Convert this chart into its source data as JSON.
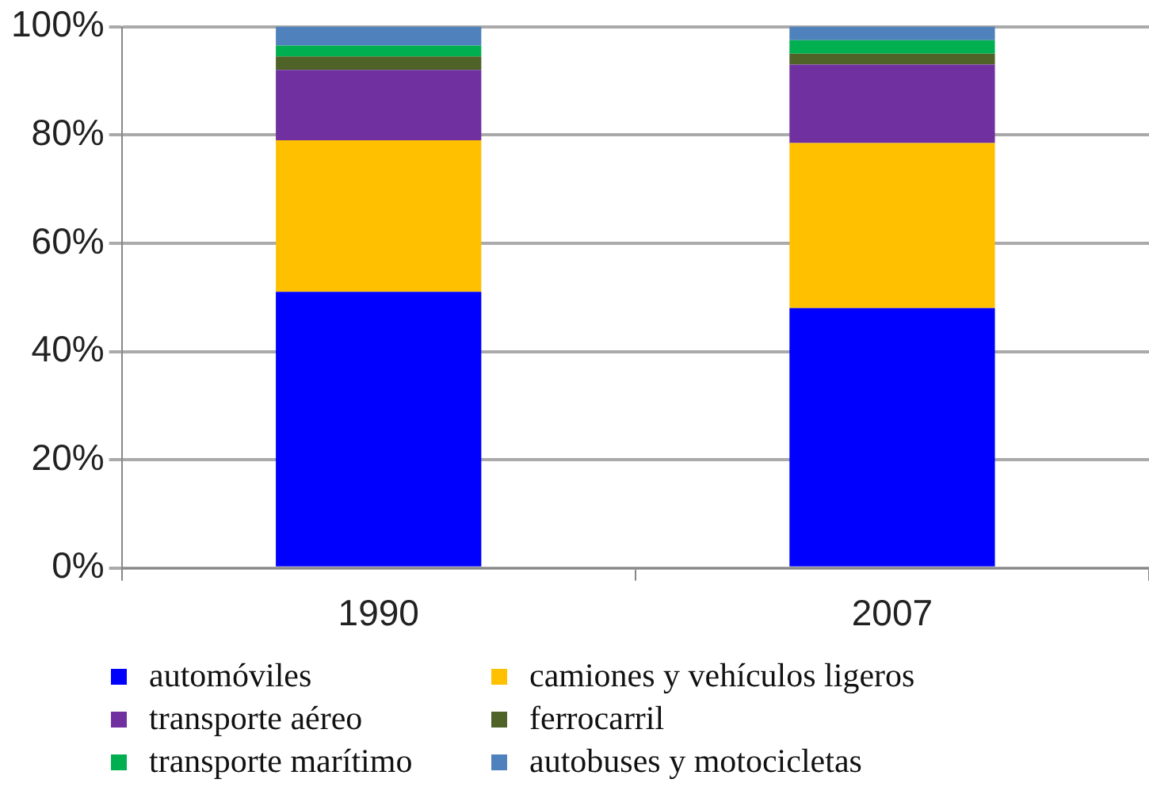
{
  "chart_data": {
    "type": "bar",
    "stacked": true,
    "categories": [
      "1990",
      "2007"
    ],
    "series": [
      {
        "name": "automóviles",
        "color": "#0000ff",
        "values": [
          51,
          48
        ]
      },
      {
        "name": "camiones y vehículos ligeros",
        "color": "#ffc000",
        "values": [
          28,
          30.5
        ]
      },
      {
        "name": "transporte aéreo",
        "color": "#7030a0",
        "values": [
          13,
          14.5
        ]
      },
      {
        "name": "ferrocarril",
        "color": "#4f6228",
        "values": [
          2.5,
          2
        ]
      },
      {
        "name": "transporte marítimo",
        "color": "#00b050",
        "values": [
          2,
          2.5
        ]
      },
      {
        "name": "autobuses y motocicletas",
        "color": "#4f81bd",
        "values": [
          3.5,
          2.5
        ]
      }
    ],
    "ylim": [
      0,
      100
    ],
    "yticks": [
      {
        "value": 0,
        "label": "0%"
      },
      {
        "value": 20,
        "label": "20%"
      },
      {
        "value": 40,
        "label": "40%"
      },
      {
        "value": 60,
        "label": "60%"
      },
      {
        "value": 80,
        "label": "80%"
      },
      {
        "value": 100,
        "label": "100%"
      }
    ],
    "grid": "y",
    "legend": "bottom"
  }
}
